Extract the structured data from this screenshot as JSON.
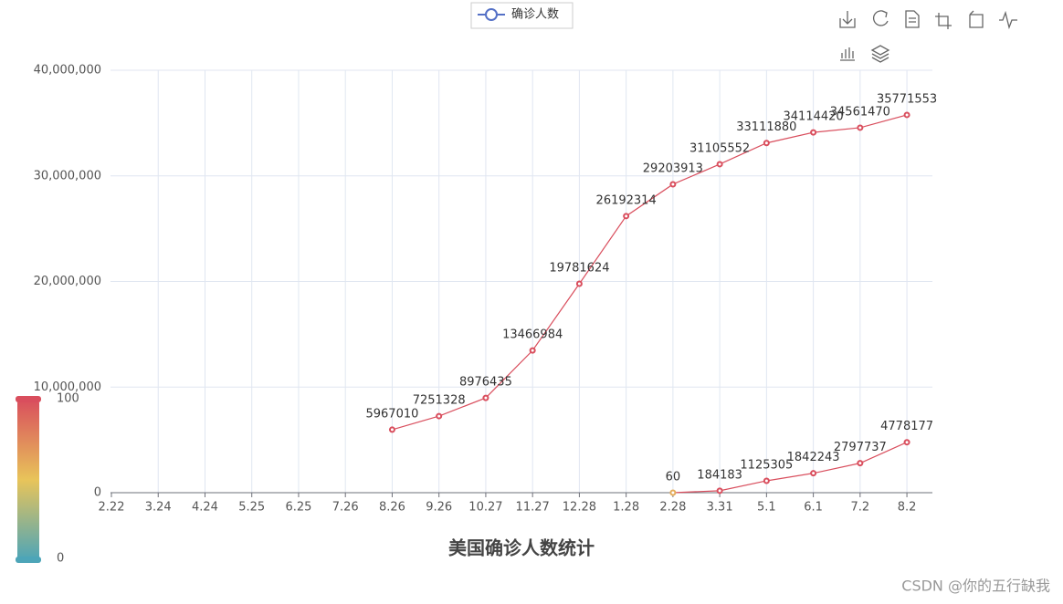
{
  "chart_data": {
    "type": "line",
    "title": "美国确诊人数统计",
    "footer": "CSDN @你的五行缺我",
    "categories": [
      "2.22",
      "3.24",
      "4.24",
      "5.25",
      "6.25",
      "7.26",
      "8.26",
      "9.26",
      "10.27",
      "11.27",
      "12.28",
      "1.28",
      "2.28",
      "3.31",
      "5.1",
      "6.1",
      "7.2",
      "8.2"
    ],
    "series": [
      {
        "name": "确诊人数",
        "color": "#d94e5d",
        "x": [
          "2.28",
          "3.31",
          "5.1",
          "6.1",
          "7.2",
          "8.2",
          null,
          "8.26",
          "9.26",
          "10.27",
          "11.27",
          "12.28",
          "1.28",
          "2.28",
          "3.31",
          "5.1",
          "6.1",
          "7.2",
          "8.2"
        ],
        "values": [
          60,
          184183,
          1125305,
          1842243,
          2797737,
          4778177,
          null,
          5967010,
          7251328,
          8976435,
          13466984,
          19781624,
          26192314,
          29203913,
          31105552,
          33111880,
          34114420,
          34561470,
          35771553
        ]
      }
    ],
    "ylim": [
      0,
      40000000
    ],
    "yticks": [
      0,
      {
        "value": 10000000,
        "label": "10,000,000"
      },
      {
        "value": 20000000,
        "label": "20,000,000"
      },
      {
        "value": 30000000,
        "label": "30,000,000"
      },
      {
        "value": 40000000,
        "label": "40,000,000"
      }
    ],
    "grid": true,
    "visual_map": {
      "min": 0,
      "max": 100,
      "colors": [
        "#4da5b8",
        "#e8c45a",
        "#d94e5d"
      ]
    }
  }
}
